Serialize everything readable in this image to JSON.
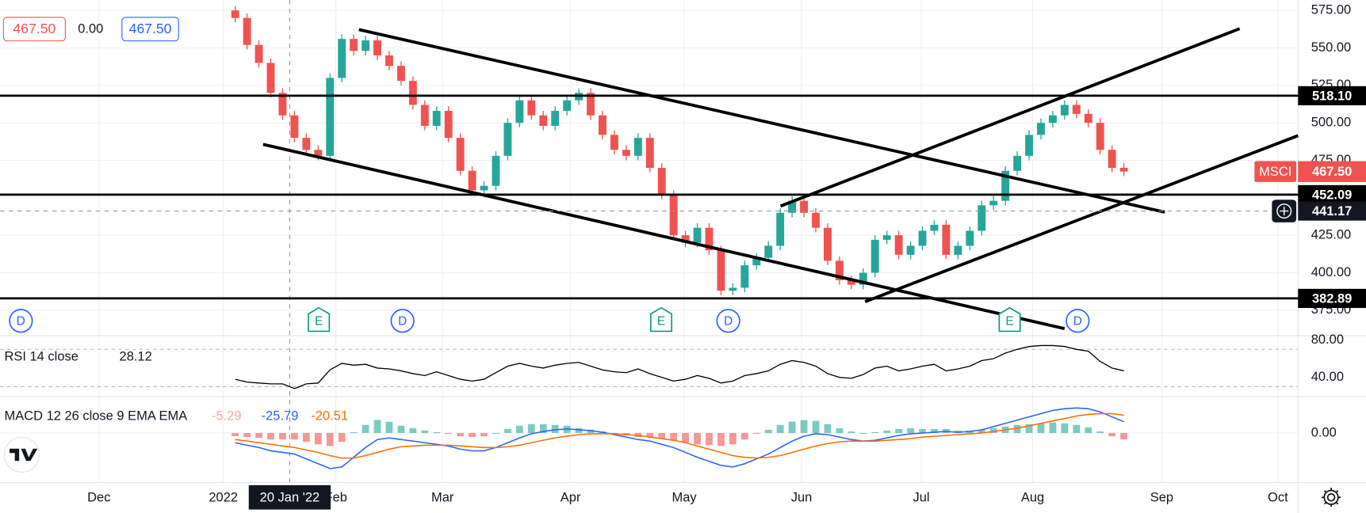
{
  "chart_data": {
    "type": "candlestick",
    "xlim": [
      -19.85,
      89.7
    ],
    "xticks": [
      {
        "value": -11.5,
        "label": "Dec"
      },
      {
        "value": -1,
        "label": "2022"
      },
      {
        "value": 8.5,
        "label": "Feb"
      },
      {
        "value": 17.5,
        "label": "Mar"
      },
      {
        "value": 28.3,
        "label": "Apr"
      },
      {
        "value": 37.9,
        "label": "May"
      },
      {
        "value": 47.8,
        "label": "Jun"
      },
      {
        "value": 57.9,
        "label": "Jul"
      },
      {
        "value": 67.3,
        "label": "Aug"
      },
      {
        "value": 78.2,
        "label": "Sep"
      },
      {
        "value": 88,
        "label": "Oct"
      }
    ],
    "crosshair_x": {
      "value": 4.6,
      "label": "20 Jan '22"
    },
    "legend": [
      "467.50",
      "0.00",
      "467.50"
    ],
    "events": [
      "D",
      "E",
      "D",
      "E",
      "D",
      "E",
      "D"
    ],
    "price": {
      "ylim": [
        358.64,
        581.96
      ],
      "yticks": [
        {
          "value": 375,
          "label": "375.00"
        },
        {
          "value": 400,
          "label": "400.00"
        },
        {
          "value": 425,
          "label": "425.00"
        },
        {
          "value": 450,
          "label": "450.00"
        },
        {
          "value": 475,
          "label": "475.00"
        },
        {
          "value": 500,
          "label": "500.00"
        },
        {
          "value": 525,
          "label": "525.00"
        },
        {
          "value": 550,
          "label": "550.00"
        },
        {
          "value": 575,
          "label": "575.00"
        }
      ],
      "up_color": "#26a69a",
      "down_color": "#ef5350",
      "open": [
        575,
        570,
        552,
        540,
        520,
        505,
        490,
        482,
        478,
        530,
        556,
        548,
        555,
        545,
        538,
        528,
        512,
        498,
        508,
        490,
        468,
        455,
        458,
        478,
        500,
        515,
        505,
        498,
        508,
        515,
        520,
        505,
        492,
        482,
        478,
        490,
        470,
        452,
        425,
        420,
        430,
        415,
        388,
        390,
        405,
        410,
        418,
        440,
        448,
        440,
        430,
        408,
        395,
        392,
        400,
        422,
        425,
        412,
        418,
        428,
        432,
        412,
        418,
        428,
        445,
        448,
        468,
        478,
        492,
        500,
        505,
        512,
        506,
        500,
        482,
        470
      ],
      "high": [
        578,
        573,
        555,
        543,
        523,
        508,
        493,
        485,
        533,
        559,
        559,
        558,
        558,
        548,
        541,
        531,
        515,
        511,
        511,
        493,
        471,
        461,
        481,
        503,
        518,
        518,
        508,
        511,
        518,
        523,
        523,
        508,
        495,
        485,
        493,
        493,
        473,
        455,
        428,
        433,
        433,
        418,
        393,
        408,
        413,
        421,
        443,
        451,
        451,
        443,
        433,
        411,
        398,
        403,
        425,
        428,
        428,
        421,
        431,
        435,
        435,
        421,
        431,
        448,
        451,
        471,
        481,
        495,
        503,
        508,
        515,
        515,
        509,
        503,
        485,
        473
      ],
      "low": [
        567,
        549,
        537,
        517,
        502,
        487,
        479,
        475,
        475,
        527,
        545,
        545,
        542,
        535,
        525,
        509,
        495,
        495,
        487,
        465,
        452,
        452,
        455,
        475,
        497,
        502,
        495,
        495,
        505,
        512,
        502,
        489,
        479,
        475,
        475,
        467,
        449,
        422,
        417,
        417,
        412,
        385,
        385,
        387,
        402,
        407,
        415,
        437,
        437,
        427,
        405,
        392,
        389,
        389,
        397,
        419,
        409,
        409,
        415,
        425,
        409,
        409,
        415,
        425,
        442,
        445,
        465,
        475,
        489,
        497,
        502,
        503,
        497,
        479,
        467,
        464.5
      ],
      "close": [
        570,
        552,
        540,
        520,
        505,
        490,
        482,
        478,
        530,
        556,
        548,
        555,
        545,
        538,
        528,
        512,
        498,
        508,
        490,
        468,
        455,
        458,
        478,
        500,
        515,
        505,
        498,
        508,
        515,
        520,
        505,
        492,
        482,
        478,
        490,
        470,
        452,
        425,
        420,
        430,
        415,
        388,
        390,
        405,
        410,
        418,
        440,
        448,
        440,
        430,
        408,
        395,
        392,
        400,
        422,
        425,
        412,
        418,
        428,
        432,
        412,
        418,
        428,
        445,
        448,
        468,
        478,
        492,
        500,
        505,
        512,
        506,
        500,
        482,
        470,
        467.5
      ],
      "levels": [
        {
          "value": 518.1,
          "label": "518.10"
        },
        {
          "value": 452.09,
          "label": "452.09"
        },
        {
          "value": 382.89,
          "label": "382.89"
        }
      ],
      "crosshair_y": {
        "value": 441.17,
        "label": "441.17"
      },
      "symbol": "MSCI",
      "last": {
        "value": 467.5,
        "label": "467.50"
      }
    },
    "rsi": {
      "name": "RSI 14 close",
      "value_label": "28.12",
      "color": "#000000",
      "ylim": [
        20.47,
        84.65
      ],
      "yticks": [
        {
          "value": 80,
          "label": "80.00"
        },
        {
          "value": 40,
          "label": "40.00"
        }
      ],
      "bands": [
        70,
        30
      ],
      "values": [
        38,
        35,
        34,
        33,
        33,
        28,
        33,
        34,
        48,
        55,
        53,
        54,
        50,
        49,
        47,
        44,
        42,
        46,
        42,
        38,
        36,
        38,
        45,
        52,
        55,
        52,
        50,
        53,
        55,
        56,
        52,
        48,
        46,
        45,
        49,
        44,
        40,
        36,
        38,
        42,
        39,
        34,
        36,
        42,
        44,
        47,
        54,
        58,
        56,
        52,
        44,
        40,
        39,
        43,
        50,
        52,
        47,
        49,
        52,
        54,
        47,
        49,
        52,
        58,
        60,
        66,
        70,
        73,
        74,
        74,
        73,
        70,
        68,
        57,
        50,
        47
      ]
    },
    "macd": {
      "name": "MACD 12 26 close 9 EMA EMA",
      "value_labels": [
        "-5.29",
        "-25.79",
        "-20.51"
      ],
      "ylim": [
        -61.3,
        45.2
      ],
      "yticks": [
        {
          "value": 0,
          "label": "0.00"
        }
      ],
      "macd_color": "#2962ff",
      "signal_color": "#ff6d00",
      "hist_up_color": "#26a69a",
      "hist_down_color": "#ef5350",
      "macd": [
        -12,
        -15,
        -18,
        -22,
        -24,
        -26,
        -32,
        -38,
        -44,
        -42,
        -30,
        -18,
        -8,
        -6,
        -8,
        -10,
        -12,
        -14,
        -16,
        -20,
        -22,
        -22,
        -18,
        -12,
        -6,
        -1,
        2,
        4,
        5,
        4,
        3,
        1,
        -2,
        -5,
        -8,
        -10,
        -14,
        -18,
        -24,
        -30,
        -35,
        -40,
        -42,
        -38,
        -32,
        -26,
        -18,
        -10,
        -4,
        -1,
        -2,
        -5,
        -8,
        -10,
        -9,
        -6,
        -3,
        -1,
        0,
        1,
        2,
        1,
        2,
        4,
        8,
        12,
        16,
        20,
        24,
        28,
        30,
        31,
        30,
        26,
        20,
        14
      ],
      "signal": [
        -8,
        -10,
        -12,
        -14,
        -16,
        -18,
        -21,
        -24,
        -28,
        -31,
        -31,
        -28,
        -24,
        -20,
        -17,
        -16,
        -15,
        -15,
        -15,
        -16,
        -17,
        -18,
        -18,
        -17,
        -15,
        -12,
        -9,
        -6,
        -4,
        -2,
        -1,
        -1,
        -1,
        -2,
        -3,
        -5,
        -7,
        -9,
        -12,
        -16,
        -20,
        -24,
        -28,
        -30,
        -31,
        -30,
        -28,
        -24,
        -20,
        -16,
        -13,
        -11,
        -10,
        -10,
        -10,
        -9,
        -8,
        -7,
        -5,
        -4,
        -3,
        -2,
        -1,
        0,
        2,
        4,
        6,
        9,
        12,
        15,
        18,
        21,
        23,
        24,
        24,
        22
      ],
      "histogram": [
        -4,
        -5,
        -6,
        -8,
        -8,
        -8,
        -11,
        -14,
        -16,
        -11,
        1,
        10,
        16,
        14,
        9,
        6,
        3,
        1,
        -1,
        -4,
        -5,
        -4,
        0,
        5,
        9,
        11,
        11,
        10,
        9,
        6,
        4,
        2,
        -1,
        -3,
        -5,
        -5,
        -7,
        -9,
        -12,
        -14,
        -15,
        -16,
        -14,
        -8,
        -1,
        4,
        10,
        14,
        16,
        15,
        11,
        6,
        2,
        0,
        1,
        3,
        5,
        6,
        5,
        5,
        5,
        3,
        3,
        4,
        6,
        8,
        10,
        11,
        12,
        13,
        12,
        10,
        7,
        2,
        -4,
        -8
      ]
    }
  }
}
